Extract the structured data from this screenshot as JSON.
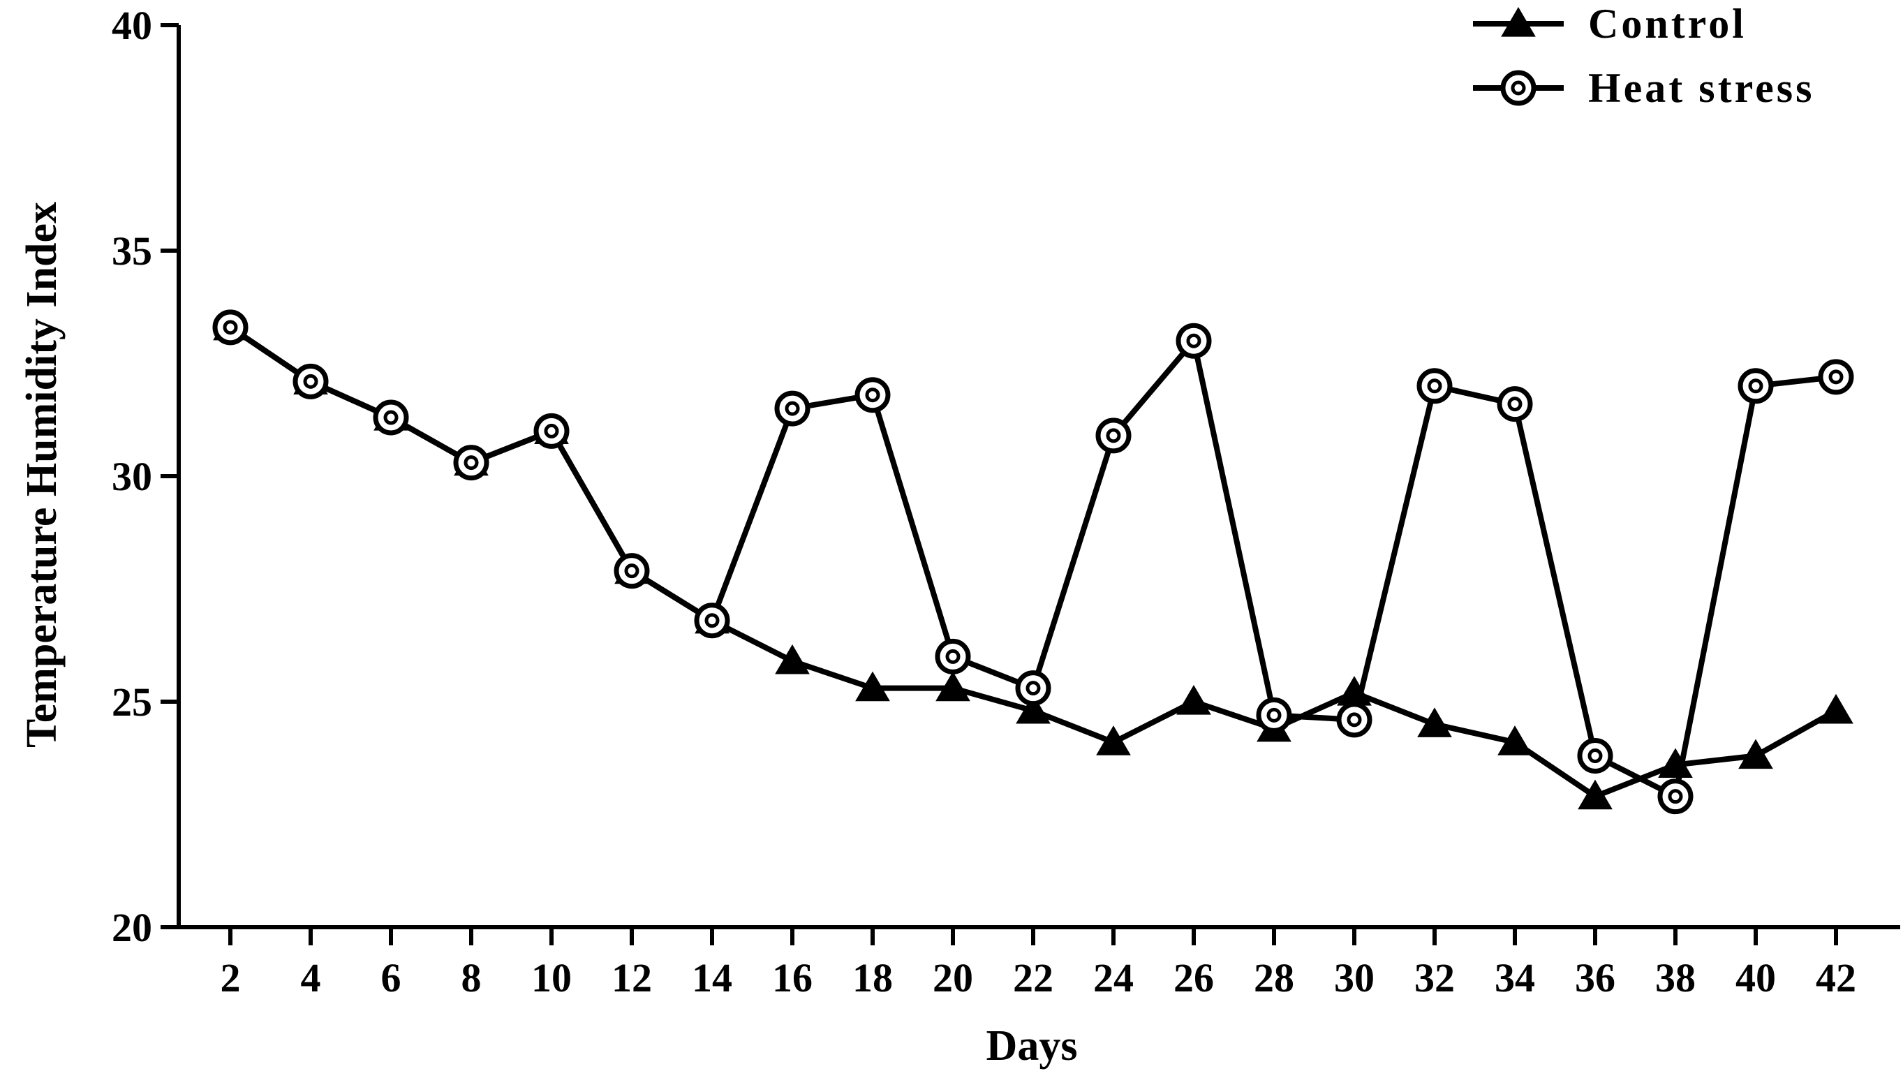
{
  "chart_data": {
    "type": "line",
    "xlabel": "Days",
    "ylabel": "Temperature Humidity Index",
    "ylim": [
      20,
      40
    ],
    "yticks": [
      20,
      25,
      30,
      35,
      40
    ],
    "x": [
      2,
      4,
      6,
      8,
      10,
      12,
      14,
      16,
      18,
      20,
      22,
      24,
      26,
      28,
      30,
      32,
      34,
      36,
      38,
      40,
      42
    ],
    "legend_position": "top-right",
    "grid": false,
    "series": [
      {
        "name": "Control",
        "marker": "triangle",
        "color": "#000000",
        "values": [
          33.3,
          32.1,
          31.3,
          30.3,
          31.0,
          27.9,
          26.8,
          25.9,
          25.3,
          25.3,
          24.8,
          24.1,
          25.0,
          24.4,
          25.2,
          24.5,
          24.1,
          22.9,
          23.6,
          23.8,
          24.8
        ]
      },
      {
        "name": "Heat stress",
        "marker": "circle",
        "color": "#000000",
        "values": [
          33.3,
          32.1,
          31.3,
          30.3,
          31.0,
          27.9,
          26.8,
          31.5,
          31.8,
          26.0,
          25.3,
          30.9,
          33.0,
          24.7,
          24.6,
          32.0,
          31.6,
          23.8,
          22.9,
          32.0,
          32.2
        ]
      }
    ]
  }
}
